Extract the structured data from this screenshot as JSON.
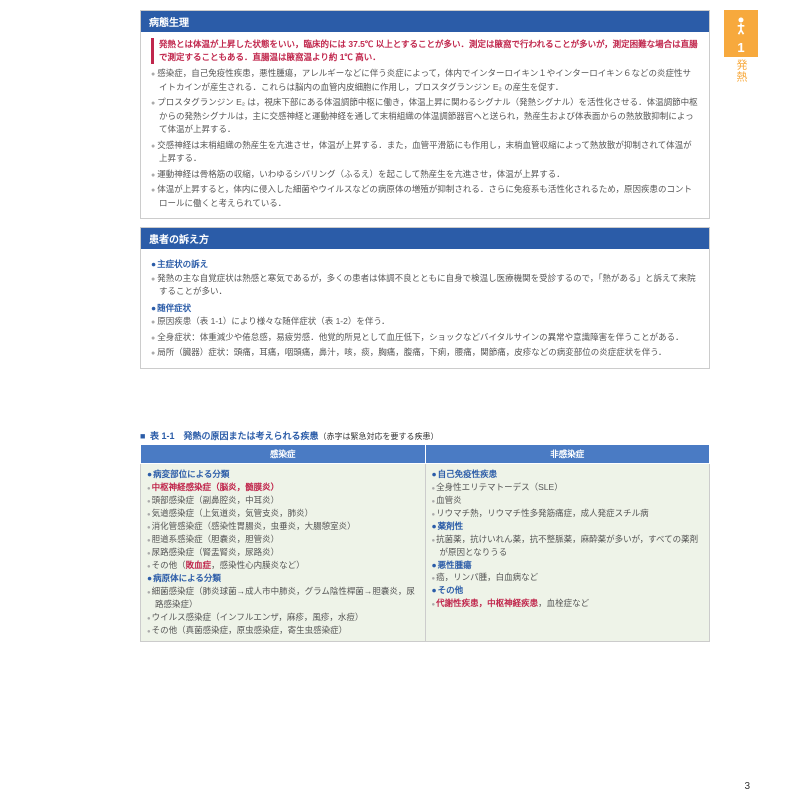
{
  "sidebar": {
    "number": "1",
    "label": "発熱"
  },
  "sections": [
    {
      "title": "病態生理",
      "lead": "発熱とは体温が上昇した状態をいい，臨床的には 37.5℃ 以上とすることが多い．測定は腋窩で行われることが多いが，測定困難な場合は直腸で測定することもある．直腸温は腋窩温より約 1℃ 高い．",
      "bullets": [
        "感染症，自己免疫性疾患，悪性腫瘍，アレルギーなどに伴う炎症によって，体内でインターロイキン１やインターロイキン６などの炎症性サイトカインが産生される．これらは脳内の血管内皮細胞に作用し，プロスタグランジン E₂ の産生を促す．",
        "プロスタグランジン E₂ は，視床下部にある体温調節中枢に働き，体温上昇に関わるシグナル（発熱シグナル）を活性化させる．体温調節中枢からの発熱シグナルは，主に交感神経と運動神経を通して末梢組織の体温調節器官へと送られ，熱産生および体表面からの熱放散抑制によって体温が上昇する．",
        "交感神経は末梢組織の熱産生を亢進させ，体温が上昇する．また，血管平滑筋にも作用し，末梢血管収縮によって熱放散が抑制されて体温が上昇する．",
        "運動神経は骨格筋の収縮，いわゆるシバリング（ふるえ）を起こして熱産生を亢進させ，体温が上昇する．",
        "体温が上昇すると，体内に侵入した細菌やウイルスなどの病原体の増殖が抑制される．さらに免疫系も活性化されるため，原因疾患のコントロールに働くと考えられている．"
      ]
    },
    {
      "title": "患者の訴え方",
      "groups": [
        {
          "head": "主症状の訴え",
          "bullets": [
            "発熱の主な自覚症状は熱感と寒気であるが，多くの患者は体調不良とともに自身で検温し医療機関を受診するので，「熱がある」と訴えて来院することが多い．"
          ]
        },
        {
          "head": "随伴症状",
          "bullets": [
            "原因疾患（表 1-1）により様々な随伴症状（表 1-2）を伴う．",
            "全身症状：体重減少や倦怠感，易疲労感．他覚的所見として血圧低下，ショックなどバイタルサインの異常や意識障害を伴うことがある．",
            "局所（臓器）症状：頭痛，耳痛，咽頭痛，鼻汁，咳，痰，胸痛，腹痛，下痢，腰痛，関節痛，皮疹などの病変部位の炎症症状を伴う．"
          ]
        }
      ]
    }
  ],
  "table": {
    "caption": "表 1-1　発熱の原因または考えられる疾患",
    "caption_sub": "（赤字は緊急対応を要する疾患）",
    "headers": [
      "感染症",
      "非感染症"
    ],
    "left": [
      {
        "type": "cat",
        "text": "病変部位による分類"
      },
      {
        "type": "item-red",
        "text": "中枢神経感染症（脳炎，髄膜炎）"
      },
      {
        "type": "item",
        "text": "頭部感染症（副鼻腔炎，中耳炎）"
      },
      {
        "type": "item",
        "text": "気道感染症（上気道炎，気管支炎，肺炎）"
      },
      {
        "type": "item",
        "text": "消化管感染症（感染性胃腸炎，虫垂炎，大腸憩室炎）"
      },
      {
        "type": "item",
        "text": "胆道系感染症（胆嚢炎，胆管炎）"
      },
      {
        "type": "item",
        "text": "尿路感染症（腎盂腎炎，尿路炎）"
      },
      {
        "type": "item-mixed",
        "prefix": "その他（",
        "red": "敗血症",
        "suffix": "，感染性心内膜炎など）"
      },
      {
        "type": "cat",
        "text": "病原体による分類"
      },
      {
        "type": "item",
        "text": "細菌感染症（肺炎球菌→成人市中肺炎，グラム陰性桿菌→胆嚢炎，尿路感染症）"
      },
      {
        "type": "item",
        "text": "ウイルス感染症（インフルエンザ，麻疹，風疹，水痘）"
      },
      {
        "type": "item",
        "text": "その他（真菌感染症，原虫感染症，寄生虫感染症）"
      }
    ],
    "right": [
      {
        "type": "cat",
        "text": "自己免疫性疾患"
      },
      {
        "type": "item",
        "text": "全身性エリテマトーデス（SLE）"
      },
      {
        "type": "item",
        "text": "血管炎"
      },
      {
        "type": "item",
        "text": "リウマチ熱，リウマチ性多発筋痛症，成人発症スチル病"
      },
      {
        "type": "cat",
        "text": "薬剤性"
      },
      {
        "type": "item",
        "text": "抗菌薬，抗けいれん薬，抗不整脈薬，麻酔薬が多いが，すべての薬剤が原因となりうる"
      },
      {
        "type": "cat",
        "text": "悪性腫瘍"
      },
      {
        "type": "item",
        "text": "癌，リンパ腫，白血病など"
      },
      {
        "type": "cat",
        "text": "その他"
      },
      {
        "type": "item-mixed",
        "prefix": "",
        "red": "代謝性疾患，中枢神経疾患",
        "suffix": "，血栓症など"
      }
    ]
  },
  "page_number": "3"
}
